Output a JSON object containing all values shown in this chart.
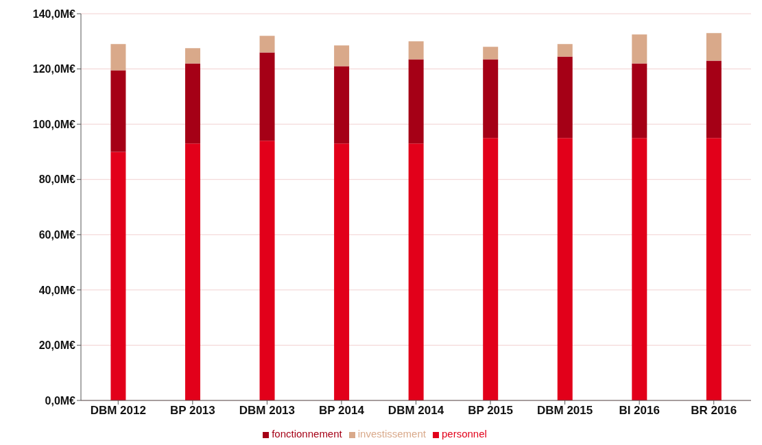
{
  "chart_data": {
    "type": "bar",
    "stacked": true,
    "categories": [
      "DBM 2012",
      "BP 2013",
      "DBM 2013",
      "BP 2014",
      "DBM 2014",
      "BP 2015",
      "DBM 2015",
      "BI 2016",
      "BR 2016"
    ],
    "series": [
      {
        "name": "personnel",
        "color": "#e2001a",
        "values": [
          90,
          93,
          94,
          93,
          93,
          95,
          95,
          95,
          95
        ]
      },
      {
        "name": "fonctionnement",
        "color": "#a50016",
        "values": [
          29.5,
          29,
          32,
          28,
          30.5,
          28.5,
          29.5,
          27,
          28
        ]
      },
      {
        "name": "investissement",
        "color": "#d9a98a",
        "values": [
          9.5,
          5.5,
          6,
          7.5,
          6.5,
          4.5,
          4.5,
          10.5,
          10
        ]
      }
    ],
    "ylim": [
      0,
      140
    ],
    "yticks": [
      {
        "value": 0,
        "label": "0,0M€"
      },
      {
        "value": 20,
        "label": "20,0M€"
      },
      {
        "value": 40,
        "label": "40,0M€"
      },
      {
        "value": 60,
        "label": "60,0M€"
      },
      {
        "value": 80,
        "label": "80,0M€"
      },
      {
        "value": 100,
        "label": "100,0M€"
      },
      {
        "value": 120,
        "label": "120,0M€"
      },
      {
        "value": 140,
        "label": "140,0M€"
      }
    ],
    "grid": "y",
    "legend": "bottom"
  }
}
